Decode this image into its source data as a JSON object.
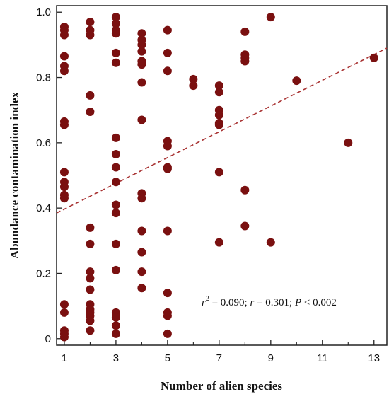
{
  "chart_data": {
    "type": "scatter",
    "title": "",
    "xlabel": "Number of alien species",
    "ylabel": "Abundance contamination index",
    "xlim": [
      0.7,
      13.5
    ],
    "ylim": [
      -0.02,
      1.02
    ],
    "xticks": [
      1,
      3,
      5,
      7,
      9,
      11,
      13
    ],
    "xticks_minor": [
      2,
      4,
      6,
      8,
      10,
      12
    ],
    "yticks": [
      0,
      0.2,
      0.4,
      0.6,
      0.8,
      1.0
    ],
    "ytick_labels": [
      "0",
      "0.2",
      "0.4",
      "0.6",
      "0.8",
      "1.0"
    ],
    "grid": false,
    "marker_color": "#7a1010",
    "trend_color": "#a83232",
    "trendline": {
      "style": "dashed",
      "x": [
        0.7,
        13.5
      ],
      "y": [
        0.385,
        0.89
      ]
    },
    "annotation": {
      "r_symbol": "r",
      "r2_exp": "2",
      "r2_eq": " = 0.090;  ",
      "r_eq": " = 0.301; ",
      "p_symbol": "P",
      "p_eq": " < 0.002"
    },
    "points": [
      [
        1,
        0.955
      ],
      [
        1,
        0.945
      ],
      [
        1,
        0.93
      ],
      [
        1,
        0.865
      ],
      [
        1,
        0.835
      ],
      [
        1,
        0.82
      ],
      [
        1,
        0.665
      ],
      [
        1,
        0.655
      ],
      [
        1,
        0.51
      ],
      [
        1,
        0.48
      ],
      [
        1,
        0.465
      ],
      [
        1,
        0.44
      ],
      [
        1,
        0.43
      ],
      [
        1,
        0.105
      ],
      [
        1,
        0.08
      ],
      [
        1,
        0.025
      ],
      [
        1,
        0.015
      ],
      [
        1,
        0.005
      ],
      [
        2,
        0.97
      ],
      [
        2,
        0.945
      ],
      [
        2,
        0.93
      ],
      [
        2,
        0.745
      ],
      [
        2,
        0.695
      ],
      [
        2,
        0.34
      ],
      [
        2,
        0.29
      ],
      [
        2,
        0.205
      ],
      [
        2,
        0.185
      ],
      [
        2,
        0.15
      ],
      [
        2,
        0.105
      ],
      [
        2,
        0.09
      ],
      [
        2,
        0.08
      ],
      [
        2,
        0.07
      ],
      [
        2,
        0.055
      ],
      [
        2,
        0.025
      ],
      [
        3,
        0.985
      ],
      [
        3,
        0.965
      ],
      [
        3,
        0.945
      ],
      [
        3,
        0.935
      ],
      [
        3,
        0.875
      ],
      [
        3,
        0.845
      ],
      [
        3,
        0.615
      ],
      [
        3,
        0.565
      ],
      [
        3,
        0.525
      ],
      [
        3,
        0.48
      ],
      [
        3,
        0.41
      ],
      [
        3,
        0.385
      ],
      [
        3,
        0.29
      ],
      [
        3,
        0.21
      ],
      [
        3,
        0.08
      ],
      [
        3,
        0.065
      ],
      [
        3,
        0.04
      ],
      [
        3,
        0.015
      ],
      [
        4,
        0.935
      ],
      [
        4,
        0.915
      ],
      [
        4,
        0.9
      ],
      [
        4,
        0.88
      ],
      [
        4,
        0.85
      ],
      [
        4,
        0.84
      ],
      [
        4,
        0.785
      ],
      [
        4,
        0.67
      ],
      [
        4,
        0.445
      ],
      [
        4,
        0.43
      ],
      [
        4,
        0.33
      ],
      [
        4,
        0.265
      ],
      [
        4,
        0.205
      ],
      [
        4,
        0.155
      ],
      [
        5,
        0.945
      ],
      [
        5,
        0.875
      ],
      [
        5,
        0.82
      ],
      [
        5,
        0.605
      ],
      [
        5,
        0.59
      ],
      [
        5,
        0.525
      ],
      [
        5,
        0.52
      ],
      [
        5,
        0.33
      ],
      [
        5,
        0.14
      ],
      [
        5,
        0.08
      ],
      [
        5,
        0.07
      ],
      [
        5,
        0.015
      ],
      [
        6,
        0.795
      ],
      [
        6,
        0.775
      ],
      [
        7,
        0.775
      ],
      [
        7,
        0.755
      ],
      [
        7,
        0.7
      ],
      [
        7,
        0.685
      ],
      [
        7,
        0.66
      ],
      [
        7,
        0.655
      ],
      [
        7,
        0.51
      ],
      [
        7,
        0.295
      ],
      [
        8,
        0.94
      ],
      [
        8,
        0.87
      ],
      [
        8,
        0.86
      ],
      [
        8,
        0.85
      ],
      [
        8,
        0.455
      ],
      [
        8,
        0.345
      ],
      [
        9,
        0.985
      ],
      [
        9,
        0.295
      ],
      [
        10,
        0.79
      ],
      [
        12,
        0.6
      ],
      [
        13,
        0.86
      ]
    ]
  }
}
